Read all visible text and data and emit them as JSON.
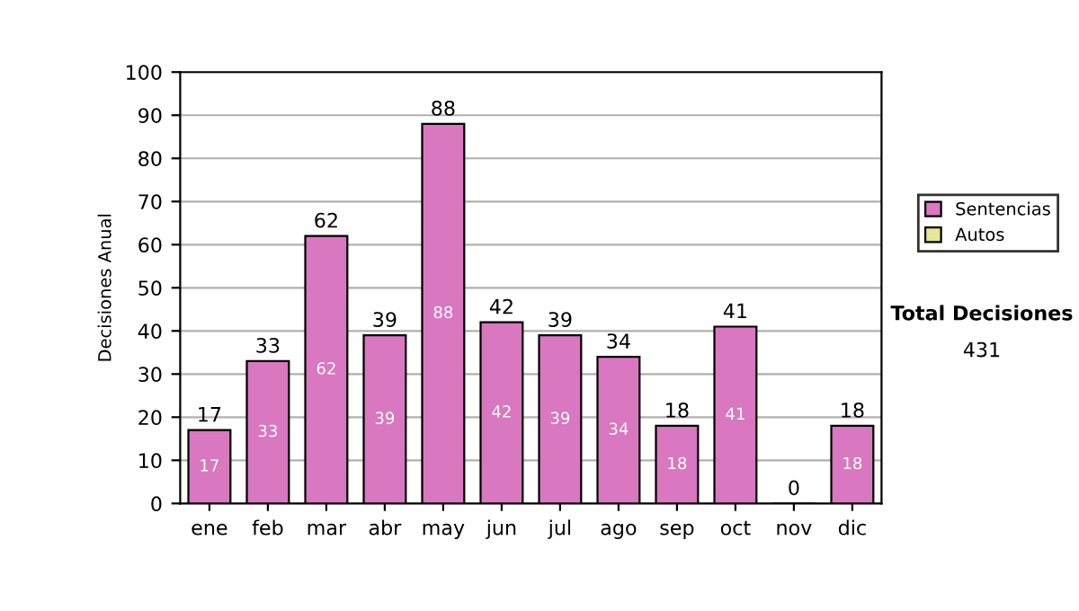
{
  "chart_data": {
    "type": "bar",
    "ylabel": "Decisiones Anual",
    "categories": [
      "ene",
      "feb",
      "mar",
      "abr",
      "may",
      "jun",
      "jul",
      "ago",
      "sep",
      "oct",
      "nov",
      "dic"
    ],
    "stacked": true,
    "series": [
      {
        "name": "Sentencias",
        "color": "#d977c0",
        "values": [
          17,
          33,
          62,
          39,
          88,
          42,
          39,
          34,
          18,
          41,
          0,
          18
        ],
        "value_labels": [
          "17",
          "33",
          "62",
          "39",
          "88",
          "42",
          "39",
          "34",
          "18",
          "41",
          null,
          "18"
        ]
      },
      {
        "name": "Autos",
        "color": "#e6e69a",
        "values": [
          null,
          null,
          null,
          null,
          null,
          null,
          null,
          null,
          null,
          null,
          null,
          null
        ]
      }
    ],
    "totals": [
      "17",
      "33",
      "62",
      "39",
      "88",
      "42",
      "39",
      "34",
      "18",
      "41",
      "0",
      "18"
    ],
    "ylim": [
      0,
      100
    ],
    "yticks": [
      0,
      10,
      20,
      30,
      40,
      50,
      60,
      70,
      80,
      90,
      100
    ],
    "grid": "y",
    "legend": "right",
    "annotations": [
      "Total Decisiones",
      "431"
    ]
  }
}
